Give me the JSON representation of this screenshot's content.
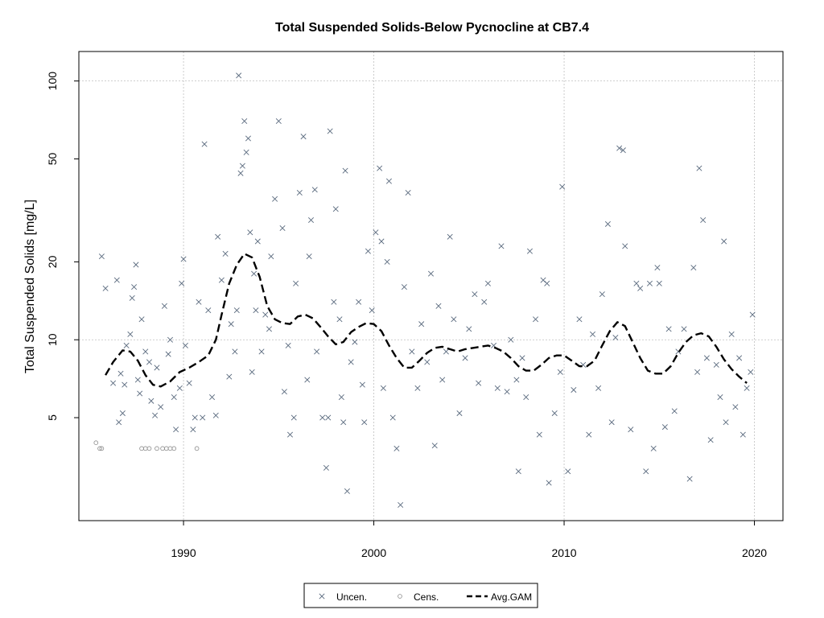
{
  "chart_data": {
    "type": "scatter",
    "title": "Total Suspended Solids-Below Pycnocline at CB7.4",
    "xlabel": "",
    "ylabel": "Total Suspended Solids [mg/L]",
    "y_scale": "log",
    "xlim": [
      1984.5,
      2021.5
    ],
    "ylim": [
      2.0,
      130
    ],
    "x_ticks": [
      1990,
      2000,
      2010,
      2020
    ],
    "x_tick_labels": [
      "1990",
      "2000",
      "2010",
      "2020"
    ],
    "y_ticks": [
      5,
      10,
      20,
      50,
      100
    ],
    "y_tick_labels": [
      "5",
      "10",
      "20",
      "50",
      "100"
    ],
    "grid": true,
    "legend_position": "bottom-center",
    "legend": [
      {
        "label": "Uncen.",
        "marker": "x"
      },
      {
        "label": "Cens.",
        "marker": "circle"
      },
      {
        "label": "Avg.GAM",
        "marker": "dashed-line"
      }
    ],
    "colors": {
      "uncensored": "#5a6a7e",
      "censored": "#8a8a8a",
      "gam": "#000000"
    },
    "series": [
      {
        "name": "Uncen.",
        "points": [
          [
            1985.7,
            21.0
          ],
          [
            1985.9,
            15.8
          ],
          [
            1986.3,
            6.8
          ],
          [
            1986.5,
            17.0
          ],
          [
            1986.6,
            4.8
          ],
          [
            1986.7,
            7.4
          ],
          [
            1986.8,
            5.2
          ],
          [
            1986.9,
            6.7
          ],
          [
            1987.0,
            9.5
          ],
          [
            1987.2,
            10.5
          ],
          [
            1987.3,
            14.5
          ],
          [
            1987.4,
            16.0
          ],
          [
            1987.5,
            19.5
          ],
          [
            1987.6,
            7.0
          ],
          [
            1987.7,
            6.2
          ],
          [
            1987.8,
            12.0
          ],
          [
            1988.0,
            9.0
          ],
          [
            1988.2,
            8.2
          ],
          [
            1988.3,
            5.8
          ],
          [
            1988.5,
            5.1
          ],
          [
            1988.6,
            7.8
          ],
          [
            1988.8,
            5.5
          ],
          [
            1989.0,
            13.5
          ],
          [
            1989.2,
            8.8
          ],
          [
            1989.3,
            10.0
          ],
          [
            1989.5,
            6.0
          ],
          [
            1989.6,
            4.5
          ],
          [
            1989.8,
            6.5
          ],
          [
            1989.9,
            16.5
          ],
          [
            1990.0,
            20.5
          ],
          [
            1990.1,
            9.5
          ],
          [
            1990.3,
            6.8
          ],
          [
            1990.5,
            4.5
          ],
          [
            1990.6,
            5.0
          ],
          [
            1990.8,
            14.0
          ],
          [
            1991.0,
            5.0
          ],
          [
            1991.1,
            57.0
          ],
          [
            1991.3,
            13.0
          ],
          [
            1991.5,
            6.0
          ],
          [
            1991.7,
            5.1
          ],
          [
            1991.8,
            25.0
          ],
          [
            1992.0,
            17.0
          ],
          [
            1992.2,
            21.5
          ],
          [
            1992.4,
            7.2
          ],
          [
            1992.5,
            11.5
          ],
          [
            1992.7,
            9.0
          ],
          [
            1992.8,
            13.0
          ],
          [
            1992.9,
            105.0
          ],
          [
            1993.0,
            44.0
          ],
          [
            1993.1,
            47.0
          ],
          [
            1993.2,
            70.0
          ],
          [
            1993.3,
            53.0
          ],
          [
            1993.4,
            60.0
          ],
          [
            1993.5,
            26.0
          ],
          [
            1993.6,
            7.5
          ],
          [
            1993.7,
            18.0
          ],
          [
            1993.8,
            13.0
          ],
          [
            1993.9,
            24.0
          ],
          [
            1994.1,
            9.0
          ],
          [
            1994.3,
            12.5
          ],
          [
            1994.5,
            11.0
          ],
          [
            1994.6,
            21.0
          ],
          [
            1994.8,
            35.0
          ],
          [
            1995.0,
            70.0
          ],
          [
            1995.2,
            27.0
          ],
          [
            1995.3,
            6.3
          ],
          [
            1995.5,
            9.5
          ],
          [
            1995.6,
            4.3
          ],
          [
            1995.8,
            5.0
          ],
          [
            1995.9,
            16.5
          ],
          [
            1996.1,
            37.0
          ],
          [
            1996.3,
            61.0
          ],
          [
            1996.5,
            7.0
          ],
          [
            1996.6,
            21.0
          ],
          [
            1996.7,
            29.0
          ],
          [
            1996.9,
            38.0
          ],
          [
            1997.0,
            9.0
          ],
          [
            1997.3,
            5.0
          ],
          [
            1997.5,
            3.2
          ],
          [
            1997.6,
            5.0
          ],
          [
            1997.7,
            64.0
          ],
          [
            1997.9,
            14.0
          ],
          [
            1998.0,
            32.0
          ],
          [
            1998.2,
            12.0
          ],
          [
            1998.3,
            6.0
          ],
          [
            1998.4,
            4.8
          ],
          [
            1998.5,
            45.0
          ],
          [
            1998.6,
            2.6
          ],
          [
            1998.8,
            8.2
          ],
          [
            1999.0,
            9.8
          ],
          [
            1999.2,
            14.0
          ],
          [
            1999.4,
            6.7
          ],
          [
            1999.5,
            4.8
          ],
          [
            1999.7,
            22.0
          ],
          [
            1999.9,
            13.0
          ],
          [
            2000.1,
            26.0
          ],
          [
            2000.3,
            46.0
          ],
          [
            2000.4,
            24.0
          ],
          [
            2000.5,
            6.5
          ],
          [
            2000.7,
            20.0
          ],
          [
            2000.8,
            41.0
          ],
          [
            2001.0,
            5.0
          ],
          [
            2001.2,
            3.8
          ],
          [
            2001.4,
            2.3
          ],
          [
            2001.6,
            16.0
          ],
          [
            2001.8,
            37.0
          ],
          [
            2002.0,
            9.0
          ],
          [
            2002.3,
            6.5
          ],
          [
            2002.5,
            11.5
          ],
          [
            2002.8,
            8.2
          ],
          [
            2003.0,
            18.0
          ],
          [
            2003.2,
            3.9
          ],
          [
            2003.4,
            13.5
          ],
          [
            2003.6,
            7.0
          ],
          [
            2003.8,
            9.0
          ],
          [
            2004.0,
            25.0
          ],
          [
            2004.2,
            12.0
          ],
          [
            2004.5,
            5.2
          ],
          [
            2004.8,
            8.5
          ],
          [
            2005.0,
            11.0
          ],
          [
            2005.3,
            15.0
          ],
          [
            2005.5,
            6.8
          ],
          [
            2005.8,
            14.0
          ],
          [
            2006.0,
            16.5
          ],
          [
            2006.3,
            9.5
          ],
          [
            2006.5,
            6.5
          ],
          [
            2006.7,
            23.0
          ],
          [
            2007.0,
            6.3
          ],
          [
            2007.2,
            10.0
          ],
          [
            2007.5,
            7.0
          ],
          [
            2007.6,
            3.1
          ],
          [
            2007.8,
            8.5
          ],
          [
            2008.0,
            6.0
          ],
          [
            2008.2,
            22.0
          ],
          [
            2008.5,
            12.0
          ],
          [
            2008.7,
            4.3
          ],
          [
            2008.9,
            17.0
          ],
          [
            2009.1,
            16.5
          ],
          [
            2009.2,
            2.8
          ],
          [
            2009.5,
            5.2
          ],
          [
            2009.8,
            7.5
          ],
          [
            2009.9,
            39.0
          ],
          [
            2010.2,
            3.1
          ],
          [
            2010.5,
            6.4
          ],
          [
            2010.8,
            12.0
          ],
          [
            2011.0,
            8.0
          ],
          [
            2011.3,
            4.3
          ],
          [
            2011.5,
            10.5
          ],
          [
            2011.8,
            6.5
          ],
          [
            2012.0,
            15.0
          ],
          [
            2012.3,
            28.0
          ],
          [
            2012.5,
            4.8
          ],
          [
            2012.7,
            10.2
          ],
          [
            2012.9,
            55.0
          ],
          [
            2013.1,
            54.0
          ],
          [
            2013.2,
            23.0
          ],
          [
            2013.5,
            4.5
          ],
          [
            2013.8,
            16.5
          ],
          [
            2014.0,
            15.8
          ],
          [
            2014.3,
            3.1
          ],
          [
            2014.5,
            16.5
          ],
          [
            2014.7,
            3.8
          ],
          [
            2014.9,
            19.0
          ],
          [
            2015.0,
            16.5
          ],
          [
            2015.3,
            4.6
          ],
          [
            2015.5,
            11.0
          ],
          [
            2015.8,
            5.3
          ],
          [
            2016.0,
            9.0
          ],
          [
            2016.3,
            11.0
          ],
          [
            2016.6,
            2.9
          ],
          [
            2016.8,
            19.0
          ],
          [
            2017.0,
            7.5
          ],
          [
            2017.1,
            46.0
          ],
          [
            2017.3,
            29.0
          ],
          [
            2017.5,
            8.5
          ],
          [
            2017.7,
            4.1
          ],
          [
            2018.0,
            8.0
          ],
          [
            2018.2,
            6.0
          ],
          [
            2018.4,
            24.0
          ],
          [
            2018.5,
            4.8
          ],
          [
            2018.8,
            10.5
          ],
          [
            2019.0,
            5.5
          ],
          [
            2019.2,
            8.5
          ],
          [
            2019.4,
            4.3
          ],
          [
            2019.6,
            6.5
          ],
          [
            2019.8,
            7.5
          ],
          [
            2019.9,
            12.5
          ]
        ]
      },
      {
        "name": "Cens.",
        "points": [
          [
            1985.4,
            4.0
          ],
          [
            1985.6,
            3.8
          ],
          [
            1985.7,
            3.8
          ],
          [
            1987.8,
            3.8
          ],
          [
            1988.0,
            3.8
          ],
          [
            1988.2,
            3.8
          ],
          [
            1988.6,
            3.8
          ],
          [
            1988.9,
            3.8
          ],
          [
            1989.1,
            3.8
          ],
          [
            1989.3,
            3.8
          ],
          [
            1989.5,
            3.8
          ],
          [
            1990.7,
            3.8
          ]
        ]
      },
      {
        "name": "Avg.GAM",
        "points": [
          [
            1985.9,
            7.3
          ],
          [
            1986.3,
            8.2
          ],
          [
            1986.8,
            9.1
          ],
          [
            1987.2,
            9.0
          ],
          [
            1987.6,
            8.3
          ],
          [
            1988.0,
            7.3
          ],
          [
            1988.4,
            6.7
          ],
          [
            1988.8,
            6.6
          ],
          [
            1989.3,
            6.9
          ],
          [
            1989.8,
            7.5
          ],
          [
            1990.3,
            7.8
          ],
          [
            1990.8,
            8.2
          ],
          [
            1991.3,
            8.7
          ],
          [
            1991.7,
            10.0
          ],
          [
            1992.0,
            12.5
          ],
          [
            1992.4,
            16.5
          ],
          [
            1992.8,
            19.5
          ],
          [
            1993.2,
            21.5
          ],
          [
            1993.6,
            20.8
          ],
          [
            1994.0,
            17.5
          ],
          [
            1994.4,
            13.5
          ],
          [
            1994.8,
            12.0
          ],
          [
            1995.2,
            11.6
          ],
          [
            1995.6,
            11.5
          ],
          [
            1996.0,
            12.3
          ],
          [
            1996.4,
            12.5
          ],
          [
            1996.8,
            12.1
          ],
          [
            1997.2,
            11.2
          ],
          [
            1997.6,
            10.3
          ],
          [
            1998.0,
            9.6
          ],
          [
            1998.4,
            9.8
          ],
          [
            1998.8,
            10.7
          ],
          [
            1999.2,
            11.2
          ],
          [
            1999.6,
            11.6
          ],
          [
            2000.0,
            11.5
          ],
          [
            2000.4,
            10.8
          ],
          [
            2000.8,
            9.5
          ],
          [
            2001.2,
            8.5
          ],
          [
            2001.6,
            7.8
          ],
          [
            2002.0,
            7.8
          ],
          [
            2002.4,
            8.3
          ],
          [
            2002.8,
            8.9
          ],
          [
            2003.2,
            9.3
          ],
          [
            2003.6,
            9.4
          ],
          [
            2004.0,
            9.2
          ],
          [
            2004.4,
            9.0
          ],
          [
            2004.8,
            9.2
          ],
          [
            2005.2,
            9.3
          ],
          [
            2005.6,
            9.4
          ],
          [
            2006.0,
            9.5
          ],
          [
            2006.4,
            9.3
          ],
          [
            2006.8,
            9.0
          ],
          [
            2007.2,
            8.5
          ],
          [
            2007.6,
            7.9
          ],
          [
            2008.0,
            7.6
          ],
          [
            2008.4,
            7.6
          ],
          [
            2008.8,
            8.0
          ],
          [
            2009.2,
            8.5
          ],
          [
            2009.6,
            8.7
          ],
          [
            2010.0,
            8.7
          ],
          [
            2010.4,
            8.3
          ],
          [
            2010.8,
            7.9
          ],
          [
            2011.2,
            7.9
          ],
          [
            2011.6,
            8.3
          ],
          [
            2012.0,
            9.5
          ],
          [
            2012.4,
            10.8
          ],
          [
            2012.8,
            11.7
          ],
          [
            2013.2,
            11.3
          ],
          [
            2013.6,
            9.8
          ],
          [
            2014.0,
            8.5
          ],
          [
            2014.4,
            7.6
          ],
          [
            2014.8,
            7.4
          ],
          [
            2015.2,
            7.4
          ],
          [
            2015.6,
            7.9
          ],
          [
            2016.0,
            8.9
          ],
          [
            2016.4,
            9.8
          ],
          [
            2016.8,
            10.4
          ],
          [
            2017.2,
            10.6
          ],
          [
            2017.6,
            10.3
          ],
          [
            2018.0,
            9.4
          ],
          [
            2018.4,
            8.4
          ],
          [
            2018.8,
            7.7
          ],
          [
            2019.2,
            7.2
          ],
          [
            2019.6,
            6.8
          ]
        ]
      }
    ]
  }
}
